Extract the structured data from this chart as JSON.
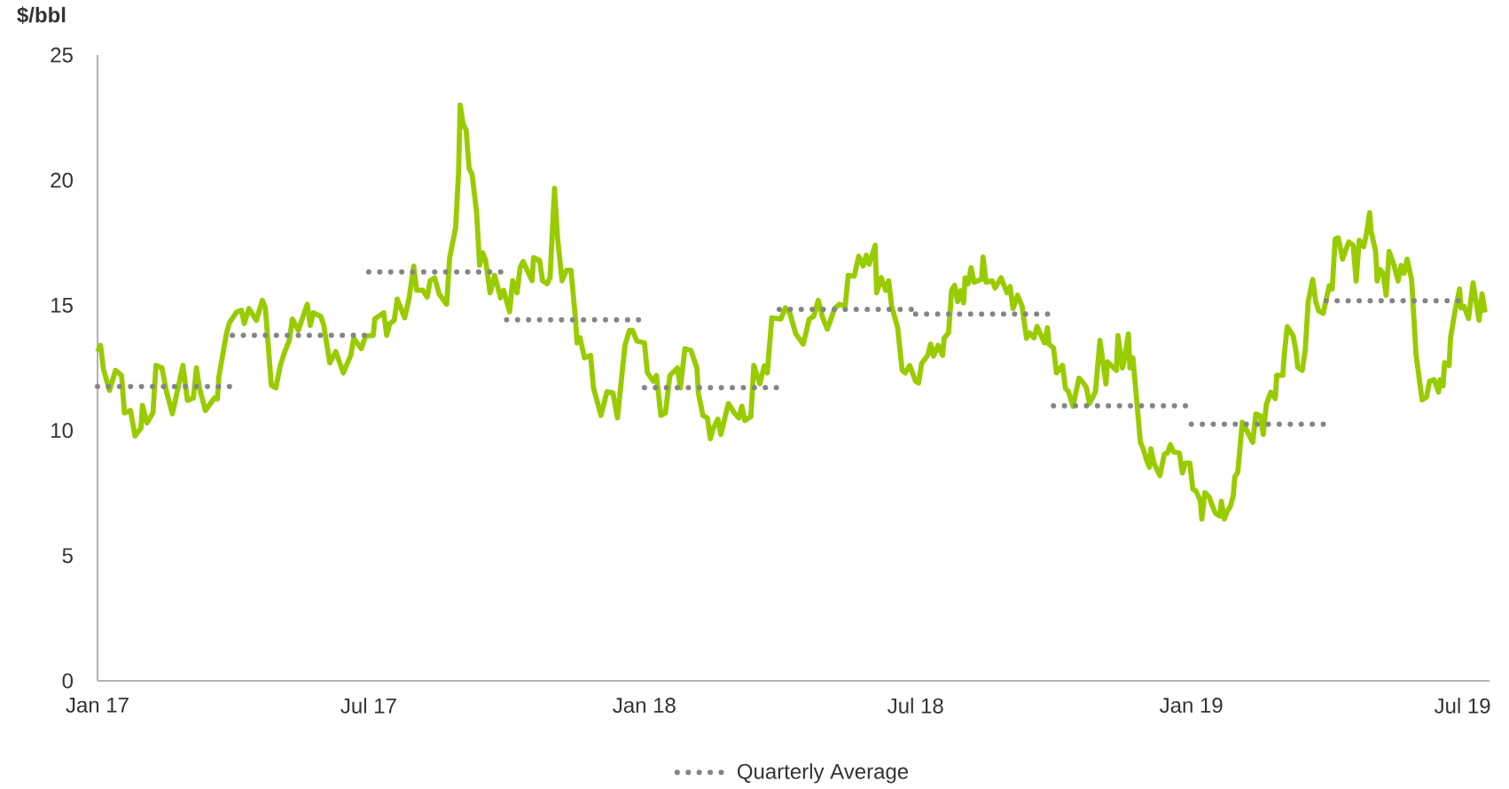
{
  "chart_data": {
    "type": "line",
    "ylabel": "$/bbl",
    "xlim": [
      "2017-01-01",
      "2019-07-19"
    ],
    "xticks": [
      {
        "value": "2017-01-01",
        "label": "Jan 17"
      },
      {
        "value": "2017-07-01",
        "label": "Jul 17"
      },
      {
        "value": "2018-01-01",
        "label": "Jan 18"
      },
      {
        "value": "2018-07-01",
        "label": "Jul 18"
      },
      {
        "value": "2019-01-01",
        "label": "Jan 19"
      },
      {
        "value": "2019-07-01",
        "label": "Jul 19"
      }
    ],
    "ylim": [
      0,
      25
    ],
    "yticks": [
      0,
      5,
      10,
      15,
      20,
      25
    ],
    "legend": "bottom",
    "marker": "none",
    "series": [
      {
        "color": "#99cc00",
        "line_style": "solid",
        "x": [
          "2017-01-01",
          "2017-01-03",
          "2017-01-05",
          "2017-01-09",
          "2017-01-13",
          "2017-01-17",
          "2017-01-19",
          "2017-01-23",
          "2017-01-26",
          "2017-01-30",
          "2017-01-31",
          "2017-02-03",
          "2017-02-07",
          "2017-02-09",
          "2017-02-13",
          "2017-02-16",
          "2017-02-20",
          "2017-02-27",
          "2017-03-02",
          "2017-03-06",
          "2017-03-08",
          "2017-03-10",
          "2017-03-14",
          "2017-03-20",
          "2017-03-22",
          "2017-03-23",
          "2017-03-28",
          "2017-03-30",
          "2017-04-04",
          "2017-04-07",
          "2017-04-09",
          "2017-04-12",
          "2017-04-17",
          "2017-04-21",
          "2017-04-23",
          "2017-04-27",
          "2017-04-30",
          "2017-05-03",
          "2017-05-06",
          "2017-05-09",
          "2017-05-11",
          "2017-05-15",
          "2017-05-19",
          "2017-05-21",
          "2017-05-23",
          "2017-05-25",
          "2017-05-30",
          "2017-06-01",
          "2017-06-05",
          "2017-06-09",
          "2017-06-14",
          "2017-06-19",
          "2017-06-21",
          "2017-06-26",
          "2017-06-29",
          "2017-07-04",
          "2017-07-05",
          "2017-07-11",
          "2017-07-13",
          "2017-07-15",
          "2017-07-18",
          "2017-07-20",
          "2017-07-25",
          "2017-07-28",
          "2017-07-31",
          "2017-08-02",
          "2017-08-06",
          "2017-08-09",
          "2017-08-11",
          "2017-08-14",
          "2017-08-17",
          "2017-08-22",
          "2017-08-24",
          "2017-08-28",
          "2017-08-30",
          "2017-08-31",
          "2017-09-02",
          "2017-09-04",
          "2017-09-06",
          "2017-09-08",
          "2017-09-11",
          "2017-09-13",
          "2017-09-15",
          "2017-09-17",
          "2017-09-20",
          "2017-09-23",
          "2017-09-27",
          "2017-09-29",
          "2017-10-03",
          "2017-10-05",
          "2017-10-08",
          "2017-10-10",
          "2017-10-12",
          "2017-10-18",
          "2017-10-19",
          "2017-10-23",
          "2017-10-25",
          "2017-10-28",
          "2017-10-30",
          "2017-11-02",
          "2017-11-04",
          "2017-11-07",
          "2017-11-10",
          "2017-11-13",
          "2017-11-16",
          "2017-11-17",
          "2017-11-19",
          "2017-11-22",
          "2017-11-26",
          "2017-11-28",
          "2017-12-03",
          "2017-12-07",
          "2017-12-11",
          "2017-12-14",
          "2017-12-19",
          "2017-12-22",
          "2017-12-24",
          "2017-12-27",
          "2018-01-01",
          "2018-01-03",
          "2018-01-07",
          "2018-01-09",
          "2018-01-12",
          "2018-01-15",
          "2018-01-18",
          "2018-01-23",
          "2018-01-25",
          "2018-01-28",
          "2018-02-01",
          "2018-02-05",
          "2018-02-06",
          "2018-02-09",
          "2018-02-12",
          "2018-02-14",
          "2018-02-16",
          "2018-02-19",
          "2018-02-21",
          "2018-02-26",
          "2018-03-02",
          "2018-03-05",
          "2018-03-07",
          "2018-03-09",
          "2018-03-13",
          "2018-03-15",
          "2018-03-19",
          "2018-03-22",
          "2018-03-24",
          "2018-03-27",
          "2018-04-02",
          "2018-04-05",
          "2018-04-08",
          "2018-04-12",
          "2018-04-17",
          "2018-04-21",
          "2018-04-24",
          "2018-04-27",
          "2018-04-30",
          "2018-05-03",
          "2018-05-08",
          "2018-05-11",
          "2018-05-15",
          "2018-05-17",
          "2018-05-21",
          "2018-05-24",
          "2018-05-27",
          "2018-05-29",
          "2018-05-31",
          "2018-06-04",
          "2018-06-05",
          "2018-06-08",
          "2018-06-11",
          "2018-06-13",
          "2018-06-15",
          "2018-06-19",
          "2018-06-22",
          "2018-06-24",
          "2018-06-27",
          "2018-07-01",
          "2018-07-03",
          "2018-07-05",
          "2018-07-09",
          "2018-07-11",
          "2018-07-13",
          "2018-07-16",
          "2018-07-19",
          "2018-07-20",
          "2018-07-23",
          "2018-07-25",
          "2018-07-27",
          "2018-07-29",
          "2018-07-31",
          "2018-08-02",
          "2018-08-03",
          "2018-08-05",
          "2018-08-07",
          "2018-08-09",
          "2018-08-14",
          "2018-08-15",
          "2018-08-17",
          "2018-08-21",
          "2018-08-23",
          "2018-08-27",
          "2018-08-31",
          "2018-09-02",
          "2018-09-04",
          "2018-09-07",
          "2018-09-10",
          "2018-09-13",
          "2018-09-15",
          "2018-09-18",
          "2018-09-20",
          "2018-09-25",
          "2018-09-27",
          "2018-09-28",
          "2018-10-01",
          "2018-10-03",
          "2018-10-07",
          "2018-10-09",
          "2018-10-11",
          "2018-10-14",
          "2018-10-18",
          "2018-10-21",
          "2018-10-23",
          "2018-10-25",
          "2018-10-29",
          "2018-11-01",
          "2018-11-05",
          "2018-11-06",
          "2018-11-12",
          "2018-11-13",
          "2018-11-16",
          "2018-11-17",
          "2018-11-20",
          "2018-11-21",
          "2018-11-23",
          "2018-11-28",
          "2018-11-30",
          "2018-12-02",
          "2018-12-04",
          "2018-12-05",
          "2018-12-07",
          "2018-12-11",
          "2018-12-14",
          "2018-12-16",
          "2018-12-18",
          "2018-12-20",
          "2018-12-24",
          "2018-12-26",
          "2018-12-28",
          "2018-12-31",
          "2019-01-02",
          "2019-01-04",
          "2019-01-07",
          "2019-01-08",
          "2019-01-10",
          "2019-01-13",
          "2019-01-14",
          "2019-01-17",
          "2019-01-20",
          "2019-01-21",
          "2019-01-23",
          "2019-01-25",
          "2019-01-27",
          "2019-01-29",
          "2019-01-30",
          "2019-02-01",
          "2019-02-04",
          "2019-02-07",
          "2019-02-11",
          "2019-02-13",
          "2019-02-16",
          "2019-02-18",
          "2019-02-20",
          "2019-02-23",
          "2019-02-26",
          "2019-02-27",
          "2019-03-03",
          "2019-03-04",
          "2019-03-06",
          "2019-03-10",
          "2019-03-12",
          "2019-03-13",
          "2019-03-16",
          "2019-03-18",
          "2019-03-20",
          "2019-03-23",
          "2019-03-25",
          "2019-03-27",
          "2019-03-30",
          "2019-04-03",
          "2019-04-05",
          "2019-04-07",
          "2019-04-09",
          "2019-04-12",
          "2019-04-14",
          "2019-04-16",
          "2019-04-19",
          "2019-04-21",
          "2019-04-23",
          "2019-04-26",
          "2019-04-28",
          "2019-04-30",
          "2019-05-01",
          "2019-05-04",
          "2019-05-05",
          "2019-05-07",
          "2019-05-09",
          "2019-05-11",
          "2019-05-13",
          "2019-05-16",
          "2019-05-19",
          "2019-05-21",
          "2019-05-23",
          "2019-05-25",
          "2019-05-28",
          "2019-05-31",
          "2019-06-04",
          "2019-06-07",
          "2019-06-09",
          "2019-06-12",
          "2019-06-15",
          "2019-06-16",
          "2019-06-18",
          "2019-06-19",
          "2019-06-22",
          "2019-06-23",
          "2019-06-26",
          "2019-06-29",
          "2019-06-30",
          "2019-07-02",
          "2019-07-05",
          "2019-07-08",
          "2019-07-10",
          "2019-07-12",
          "2019-07-14",
          "2019-07-16"
        ],
        "values": [
          13.15,
          13.4,
          12.44,
          11.6,
          12.4,
          12.2,
          10.7,
          10.8,
          9.78,
          10.1,
          11.0,
          10.3,
          10.7,
          12.6,
          12.5,
          11.55,
          10.67,
          12.6,
          11.2,
          11.3,
          12.5,
          11.7,
          10.8,
          11.3,
          11.26,
          12.15,
          13.86,
          14.3,
          14.74,
          14.8,
          14.27,
          14.87,
          14.4,
          15.2,
          14.9,
          11.8,
          11.7,
          12.6,
          13.15,
          13.6,
          14.45,
          14.0,
          14.7,
          15.04,
          14.2,
          14.7,
          14.56,
          14.2,
          12.7,
          13.15,
          12.3,
          13.0,
          13.68,
          13.27,
          13.77,
          13.8,
          14.46,
          14.7,
          13.8,
          14.27,
          14.4,
          15.25,
          14.5,
          15.3,
          16.57,
          15.6,
          15.6,
          15.33,
          15.98,
          16.1,
          15.45,
          15.04,
          16.9,
          18.1,
          20.35,
          23.0,
          22.24,
          22.0,
          20.46,
          20.23,
          18.7,
          16.6,
          17.1,
          16.8,
          15.5,
          16.2,
          15.3,
          15.6,
          14.74,
          15.98,
          15.5,
          16.5,
          16.75,
          15.98,
          16.9,
          16.8,
          15.98,
          15.86,
          16.1,
          19.67,
          17.7,
          15.98,
          16.4,
          16.4,
          14.45,
          13.5,
          13.7,
          12.9,
          13.0,
          11.7,
          10.6,
          11.55,
          11.5,
          10.5,
          13.4,
          14.0,
          14.0,
          13.57,
          13.5,
          12.3,
          11.97,
          12.2,
          10.6,
          10.7,
          12.2,
          12.5,
          11.7,
          13.27,
          13.2,
          12.5,
          11.5,
          10.6,
          10.5,
          9.67,
          10.1,
          10.45,
          9.84,
          11.08,
          10.7,
          10.5,
          10.97,
          10.4,
          10.55,
          12.6,
          11.87,
          12.58,
          12.3,
          14.5,
          14.45,
          14.9,
          14.7,
          13.86,
          13.45,
          14.45,
          14.56,
          15.2,
          14.5,
          14.05,
          14.87,
          15.04,
          14.97,
          16.2,
          16.16,
          16.96,
          16.57,
          17.0,
          16.64,
          17.4,
          15.5,
          16.1,
          15.6,
          15.98,
          14.97,
          14.1,
          12.4,
          12.3,
          12.6,
          11.97,
          11.9,
          12.68,
          13.0,
          13.45,
          12.97,
          13.4,
          13.0,
          13.68,
          13.9,
          15.6,
          15.8,
          15.15,
          15.58,
          15.1,
          16.1,
          15.86,
          16.5,
          15.92,
          16.04,
          16.93,
          15.92,
          15.98,
          15.69,
          16.1,
          15.5,
          15.75,
          14.87,
          15.4,
          14.97,
          13.68,
          13.9,
          13.7,
          14.16,
          13.5,
          14.1,
          13.45,
          13.3,
          12.3,
          12.6,
          11.68,
          11.55,
          10.97,
          12.09,
          11.9,
          11.7,
          11.08,
          11.55,
          13.6,
          11.86,
          12.74,
          12.4,
          13.8,
          12.5,
          12.74,
          13.86,
          12.5,
          12.9,
          9.53,
          9.25,
          8.84,
          8.53,
          9.27,
          8.7,
          8.2,
          9.05,
          9.1,
          9.43,
          9.15,
          9.1,
          8.3,
          8.7,
          8.7,
          7.65,
          7.59,
          7.2,
          6.46,
          7.52,
          7.34,
          7.15,
          6.7,
          6.58,
          7.17,
          6.46,
          6.77,
          6.96,
          7.4,
          8.15,
          8.33,
          10.33,
          10.0,
          9.53,
          10.66,
          10.59,
          9.84,
          11.03,
          11.53,
          11.27,
          12.2,
          12.2,
          13.0,
          14.15,
          13.77,
          13.1,
          12.53,
          12.4,
          13.2,
          15.15,
          16.03,
          15.15,
          14.78,
          14.68,
          15.78,
          15.65,
          17.65,
          17.7,
          16.84,
          17.2,
          17.53,
          17.4,
          15.97,
          17.59,
          17.34,
          17.9,
          18.7,
          17.96,
          17.15,
          15.97,
          16.43,
          16.28,
          15.4,
          17.15,
          16.65,
          15.97,
          16.59,
          16.28,
          16.84,
          16.03,
          13.0,
          11.22,
          11.34,
          11.97,
          12.03,
          11.53,
          12.03,
          11.78,
          12.71,
          12.59,
          13.71,
          14.78,
          15.65,
          14.9,
          14.96,
          14.47,
          15.9,
          15.15,
          14.4,
          15.46,
          14.71
        ]
      },
      {
        "name": "Quarterly Average",
        "color": "#858585",
        "line_style": "dotted",
        "x": [
          "2017-01-01",
          "2017-03-31"
        ],
        "values": [
          11.76,
          11.76
        ]
      },
      {
        "color": "#858585",
        "line_style": "dotted",
        "x": [
          "2017-04-01",
          "2017-06-30"
        ],
        "values": [
          13.8,
          13.8
        ]
      },
      {
        "color": "#858585",
        "line_style": "dotted",
        "x": [
          "2017-07-01",
          "2017-09-30"
        ],
        "values": [
          16.33,
          16.33
        ]
      },
      {
        "color": "#858585",
        "line_style": "dotted",
        "x": [
          "2017-10-01",
          "2017-12-31"
        ],
        "values": [
          14.42,
          14.42
        ]
      },
      {
        "color": "#858585",
        "line_style": "dotted",
        "x": [
          "2018-01-01",
          "2018-03-31"
        ],
        "values": [
          11.71,
          11.71
        ]
      },
      {
        "color": "#858585",
        "line_style": "dotted",
        "x": [
          "2018-04-01",
          "2018-06-30"
        ],
        "values": [
          14.84,
          14.84
        ]
      },
      {
        "color": "#858585",
        "line_style": "dotted",
        "x": [
          "2018-07-01",
          "2018-09-30"
        ],
        "values": [
          14.65,
          14.65
        ]
      },
      {
        "color": "#858585",
        "line_style": "dotted",
        "x": [
          "2018-10-01",
          "2018-12-31"
        ],
        "values": [
          10.99,
          10.99
        ]
      },
      {
        "color": "#858585",
        "line_style": "dotted",
        "x": [
          "2019-01-01",
          "2019-03-31"
        ],
        "values": [
          10.25,
          10.25
        ]
      },
      {
        "color": "#858585",
        "line_style": "dotted",
        "x": [
          "2019-04-01",
          "2019-06-30"
        ],
        "values": [
          15.18,
          15.18
        ]
      }
    ]
  }
}
